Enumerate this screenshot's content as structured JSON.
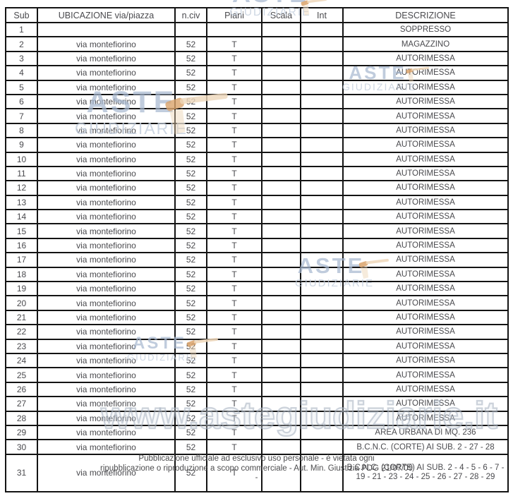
{
  "table": {
    "headers": [
      "Sub",
      "UBICAZIONE via/piazza",
      "n.civ",
      "Piani",
      "Scala",
      "Int",
      "DESCRIZIONE"
    ],
    "rows": [
      {
        "sub": "1",
        "ubicazione": "",
        "n_civ": "",
        "piani": "",
        "scala": "",
        "int": "",
        "descrizione": "SOPPRESSO"
      },
      {
        "sub": "2",
        "ubicazione": "via montefiorino",
        "n_civ": "52",
        "piani": "T",
        "scala": "",
        "int": "",
        "descrizione": "MAGAZZINO"
      },
      {
        "sub": "3",
        "ubicazione": "via montefiorino",
        "n_civ": "52",
        "piani": "T",
        "scala": "",
        "int": "",
        "descrizione": "AUTORIMESSA"
      },
      {
        "sub": "4",
        "ubicazione": "via montefiorino",
        "n_civ": "52",
        "piani": "T",
        "scala": "",
        "int": "",
        "descrizione": "AUTORIMESSA"
      },
      {
        "sub": "5",
        "ubicazione": "via montefiorino",
        "n_civ": "52",
        "piani": "T",
        "scala": "",
        "int": "",
        "descrizione": "AUTORIMESSA"
      },
      {
        "sub": "6",
        "ubicazione": "via montefiorino",
        "n_civ": "52",
        "piani": "T",
        "scala": "",
        "int": "",
        "descrizione": "AUTORIMESSA"
      },
      {
        "sub": "7",
        "ubicazione": "via montefiorino",
        "n_civ": "52",
        "piani": "T",
        "scala": "",
        "int": "",
        "descrizione": "AUTORIMESSA"
      },
      {
        "sub": "8",
        "ubicazione": "via montefiorino",
        "n_civ": "52",
        "piani": "T",
        "scala": "",
        "int": "",
        "descrizione": "AUTORIMESSA"
      },
      {
        "sub": "9",
        "ubicazione": "via montefiorino",
        "n_civ": "52",
        "piani": "T",
        "scala": "",
        "int": "",
        "descrizione": "AUTORIMESSA"
      },
      {
        "sub": "10",
        "ubicazione": "via montefiorino",
        "n_civ": "52",
        "piani": "T",
        "scala": "",
        "int": "",
        "descrizione": "AUTORIMESSA"
      },
      {
        "sub": "11",
        "ubicazione": "via montefiorino",
        "n_civ": "52",
        "piani": "T",
        "scala": "",
        "int": "",
        "descrizione": "AUTORIMESSA"
      },
      {
        "sub": "12",
        "ubicazione": "via montefiorino",
        "n_civ": "52",
        "piani": "T",
        "scala": "",
        "int": "",
        "descrizione": "AUTORIMESSA"
      },
      {
        "sub": "13",
        "ubicazione": "via montefiorino",
        "n_civ": "52",
        "piani": "T",
        "scala": "",
        "int": "",
        "descrizione": "AUTORIMESSA"
      },
      {
        "sub": "14",
        "ubicazione": "via montefiorino",
        "n_civ": "52",
        "piani": "T",
        "scala": "",
        "int": "",
        "descrizione": "AUTORIMESSA"
      },
      {
        "sub": "15",
        "ubicazione": "via montefiorino",
        "n_civ": "52",
        "piani": "T",
        "scala": "",
        "int": "",
        "descrizione": "AUTORIMESSA"
      },
      {
        "sub": "16",
        "ubicazione": "via montefiorino",
        "n_civ": "52",
        "piani": "T",
        "scala": "",
        "int": "",
        "descrizione": "AUTORIMESSA"
      },
      {
        "sub": "17",
        "ubicazione": "via montefiorino",
        "n_civ": "52",
        "piani": "T",
        "scala": "",
        "int": "",
        "descrizione": "AUTORIMESSA"
      },
      {
        "sub": "18",
        "ubicazione": "via montefiorino",
        "n_civ": "52",
        "piani": "T",
        "scala": "",
        "int": "",
        "descrizione": "AUTORIMESSA"
      },
      {
        "sub": "19",
        "ubicazione": "via montefiorino",
        "n_civ": "52",
        "piani": "T",
        "scala": "",
        "int": "",
        "descrizione": "AUTORIMESSA"
      },
      {
        "sub": "20",
        "ubicazione": "via montefiorino",
        "n_civ": "52",
        "piani": "T",
        "scala": "",
        "int": "",
        "descrizione": "AUTORIMESSA"
      },
      {
        "sub": "21",
        "ubicazione": "via montefiorino",
        "n_civ": "52",
        "piani": "T",
        "scala": "",
        "int": "",
        "descrizione": "AUTORIMESSA"
      },
      {
        "sub": "22",
        "ubicazione": "via montefiorino",
        "n_civ": "52",
        "piani": "T",
        "scala": "",
        "int": "",
        "descrizione": "AUTORIMESSA"
      },
      {
        "sub": "23",
        "ubicazione": "via montefiorino",
        "n_civ": "52",
        "piani": "T",
        "scala": "",
        "int": "",
        "descrizione": "AUTORIMESSA"
      },
      {
        "sub": "24",
        "ubicazione": "via montefiorino",
        "n_civ": "52",
        "piani": "T",
        "scala": "",
        "int": "",
        "descrizione": "AUTORIMESSA"
      },
      {
        "sub": "25",
        "ubicazione": "via montefiorino",
        "n_civ": "52",
        "piani": "T",
        "scala": "",
        "int": "",
        "descrizione": "AUTORIMESSA"
      },
      {
        "sub": "26",
        "ubicazione": "via montefiorino",
        "n_civ": "52",
        "piani": "T",
        "scala": "",
        "int": "",
        "descrizione": "AUTORIMESSA"
      },
      {
        "sub": "27",
        "ubicazione": "via montefiorino",
        "n_civ": "52",
        "piani": "T",
        "scala": "",
        "int": "",
        "descrizione": "AUTORIMESSA"
      },
      {
        "sub": "28",
        "ubicazione": "via montefiorino",
        "n_civ": "52",
        "piani": "T",
        "scala": "",
        "int": "",
        "descrizione": "AUTORIMESSA"
      },
      {
        "sub": "29",
        "ubicazione": "via montefiorino",
        "n_civ": "52",
        "piani": "T",
        "scala": "",
        "int": "",
        "descrizione": "AREA URBANA DI MQ. 236"
      },
      {
        "sub": "30",
        "ubicazione": "via montefiorino",
        "n_civ": "52",
        "piani": "T",
        "scala": "",
        "int": "",
        "descrizione": "B.C.N.C. (CORTE) AI SUB. 2 - 27 - 28"
      },
      {
        "sub": "31",
        "ubicazione": "via montefiorino",
        "n_civ": "52",
        "piani": "T",
        "scala": "",
        "int": "",
        "descrizione": "B.C.N.C. (CORTE) AI SUB. 2 - 4 - 5 - 6 - 7 - 19 - 21 - 23 - 24 - 25 - 26 - 27 - 28 - 29"
      }
    ]
  },
  "watermark": {
    "brand_top": "ASTE",
    "brand_bottom": "GIUDIZIARIE",
    "url": "www.astegiudiziarie.it",
    "colors": {
      "brand": "#a8b9d0",
      "brand_light": "#c0ccdb",
      "gavel_head": "#d9a26a",
      "gavel_handle": "#eed7ba",
      "url_outline": "#a5b0c0"
    }
  },
  "footer_notice": {
    "line1": "Pubblicazione ufficiale ad esclusivo uso personale - è vietata ogni",
    "line2": "ripubblicazione o riproduzione a scopo commerciale - Aut. Min. Giustizia PDG 21/07/09",
    "line3": "-"
  }
}
